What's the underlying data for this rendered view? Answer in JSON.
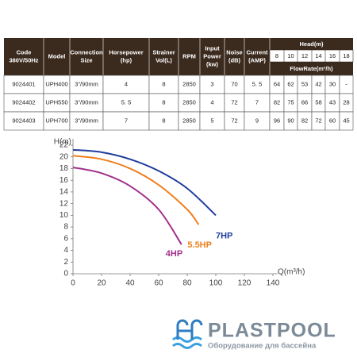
{
  "table": {
    "columns": [
      [
        "Code",
        "380V/50Hz"
      ],
      [
        "Model"
      ],
      [
        "Connection",
        "Size"
      ],
      [
        "Horsepower",
        "(hp)"
      ],
      [
        "Strainer",
        "Vol(L)"
      ],
      [
        "RPM"
      ],
      [
        "Input",
        "Power",
        "(kw)"
      ],
      [
        "Noise",
        "(dB)"
      ],
      [
        "Current",
        "(AMP)"
      ]
    ],
    "head_title": "Head(m)",
    "head_values": [
      "8",
      "10",
      "12",
      "14",
      "16",
      "18"
    ],
    "flow_title": "FlowRate(m³/h)",
    "rows": [
      [
        "9024401",
        "UPH400",
        "3\"/90mm",
        "4",
        "8",
        "2850",
        "3",
        "70",
        "5. 5",
        "64",
        "62",
        "53",
        "42",
        "30",
        "-"
      ],
      [
        "9024402",
        "UPH550",
        "3\"/90mm",
        "5. 5",
        "8",
        "2850",
        "4",
        "72",
        "7",
        "82",
        "75",
        "66",
        "58",
        "43",
        "28"
      ],
      [
        "9024403",
        "UPH700",
        "3\"/90mm",
        "7",
        "8",
        "2850",
        "5",
        "72",
        "9",
        "96",
        "90",
        "82",
        "72",
        "60",
        "45"
      ]
    ]
  },
  "chart_data": {
    "type": "line",
    "y_label": "H(m)",
    "x_label": "Q(m³/h)",
    "xlim": [
      0,
      140
    ],
    "xticks": [
      0,
      20,
      40,
      60,
      80,
      100,
      120,
      140
    ],
    "ylim": [
      0,
      22
    ],
    "yticks": [
      0,
      2,
      4,
      6,
      8,
      10,
      12,
      14,
      16,
      18,
      20,
      22
    ],
    "series": [
      {
        "name": "7HP",
        "color": "#1f3c9c",
        "x": [
          0,
          20,
          40,
          60,
          80,
          100
        ],
        "values": [
          21.2,
          20.8,
          19.6,
          17.6,
          14.6,
          10
        ]
      },
      {
        "name": "5.5HP",
        "color": "#f07f1e",
        "x": [
          0,
          20,
          40,
          60,
          80,
          88
        ],
        "values": [
          20.2,
          19.6,
          18,
          15.2,
          11,
          8.4
        ]
      },
      {
        "name": "4HP",
        "color": "#a2308c",
        "x": [
          0,
          20,
          40,
          60,
          76
        ],
        "values": [
          18.2,
          17.2,
          15,
          11,
          5
        ]
      }
    ]
  },
  "logo": {
    "name": "PLASTPOOL",
    "tagline": "Оборудование для бассейна"
  }
}
